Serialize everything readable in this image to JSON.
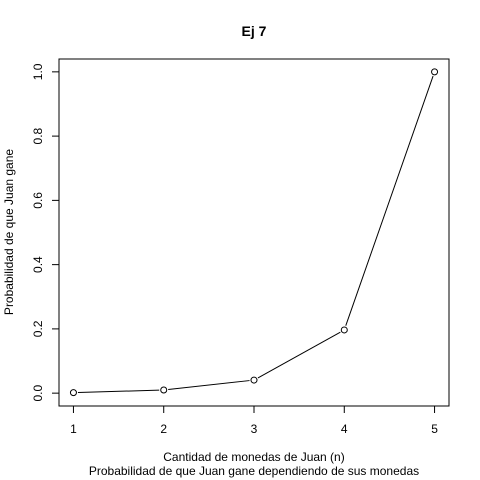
{
  "chart_data": {
    "type": "line",
    "title": "Ej 7",
    "xlabel": "Cantidad de monedas de Juan (n)",
    "subtitle": "Probabilidad de que Juan gane dependiendo de sus monedas",
    "ylabel": "Probabilidad de que Juan gane",
    "x": [
      1,
      2,
      3,
      4,
      5
    ],
    "series": [
      {
        "values": [
          0.0016,
          0.0098,
          0.0407,
          0.1967,
          1.0
        ]
      }
    ],
    "xticks": [
      "1",
      "2",
      "3",
      "4",
      "5"
    ],
    "yticks": [
      "0.0",
      "0.2",
      "0.4",
      "0.6",
      "0.8",
      "1.0"
    ],
    "xlim": [
      0.84,
      5.16
    ],
    "ylim": [
      -0.04,
      1.04
    ],
    "grid": false,
    "marker": "open-circle",
    "line_color": "#000000"
  }
}
